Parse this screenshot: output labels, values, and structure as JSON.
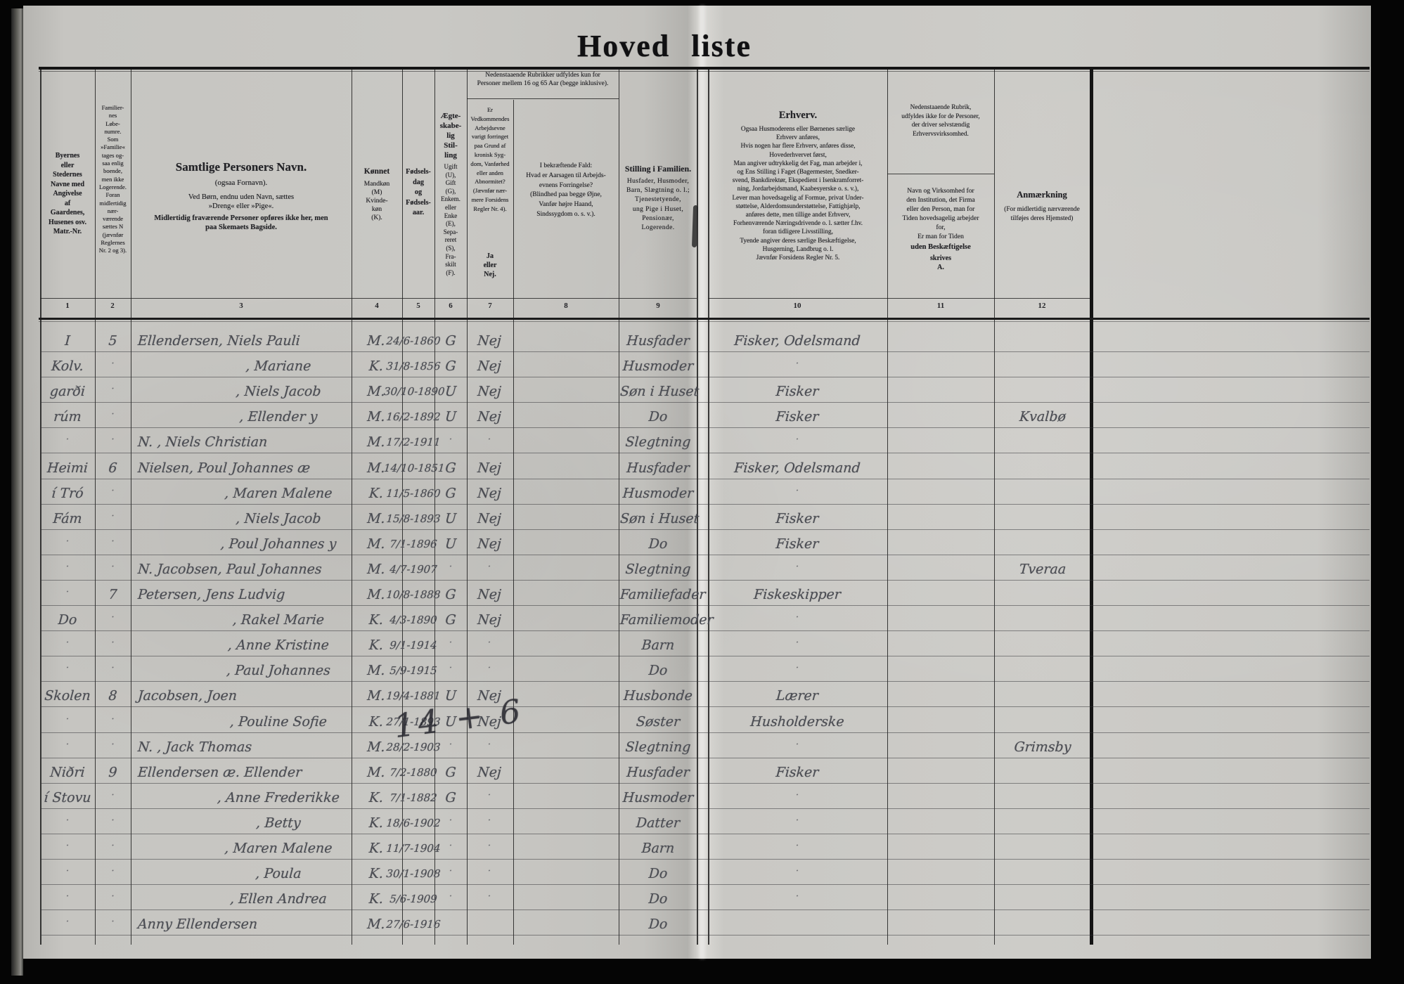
{
  "page": {
    "title_word1": "Hoved",
    "title_word2": "liste"
  },
  "colors": {
    "paper": "#c8c7c3",
    "print_ink": "#232327",
    "handwriting_ink": "#4a4c52",
    "border": "#050505"
  },
  "header": {
    "col1": "Byernes\neller\nStedernes\nNavne med\nAngivelse\naf\nGaardenes,\nHusenes osv.\nMatr.-Nr.",
    "col2": "Familier-\nnes\nLøbe-\nnumre.\nSom\n»Familie«\ntages og-\nsaa enlig\nboende,\nmen ikke\nLogerende.\nForan\nmidlertidig\nnær-\nværende\nsættes N\n(jævnfør\nReglernes\nNr. 2 og 3).",
    "col3_title": "Samtlige Personers Navn.",
    "col3_sub": "(ogsaa Fornavn).",
    "col3_line1": "Ved Børn, endnu uden Navn, sættes\n»Dreng« eller »Pige«.",
    "col3_line2": "Midlertidig fraværende Personer opføres ikke her, men\npaa Skemaets Bagside.",
    "col4_title": "Kønnet",
    "col4_sub": "Mandkøn\n(M)\nKvinde-\nkøn\n(K).",
    "col5": "Fødsels-\ndag\nog\nFødsels-\naar.",
    "col6_title": "Ægte-\nskabe-\nlig\nStil-\nling",
    "col6_sub": "Ugift\n(U),\nGift\n(G),\nEnkem.\neller\nEnke\n(E),\nSepa-\nreret\n(S),\nFra-\nskilt\n(F).",
    "group78": "Nedenstaaende Rubrikker udfyldes kun for\nPersoner mellem 16 og 65 Aar (begge inklusive).",
    "col7": "Er\nVedkommendes\nArbejdsevne\nvarigt forringet\npaa Grund af\nkronisk Syg-\ndom, Vanførhed\neller anden\nAbnormitet?\n(Jævnfør nær-\nmere Forsidens\nRegler Nr. 4).",
    "col7_janej": "Ja\neller\nNej.",
    "col8": "I bekræftende Fald:\nHvad er Aarsagen til Arbejds-\nevnens Forringelse?\n(Blindhed paa begge Øjne,\nVanfør højre Haand,\nSindssygdom o. s. v.).",
    "col9_title": "Stilling i Familien.",
    "col9_sub": "Husfader, Husmoder,\nBarn, Slægtning o. l.;\nTjenestetyende,\nung Pige i Huset,\nPensionær,\nLogerende.",
    "col10_title": "Erhverv.",
    "col10_body": "Ogsaa Husmoderens eller Børnenes særlige\nErhverv anføres,\nHvis nogen har flere Erhverv, anføres disse,\nHovederhvervet først,\nMan angiver udtrykkelig det Fag, man arbejder i,\nog Ens Stilling i Faget (Bagermester, Snedker-\nsvend, Bankdirektør, Ekspedient i Isenkramforret-\nning, Jordarbejdsmand, Kaabesyerske o. s. v.),\nLever man hovedsagelig af Formue, privat Under-\nstøttelse, Alderdomsunderstøttelse, Fattighjælp,\nanføres dette, men tillige andet Erhverv,\nForhenværende Næringsdrivende o. l. sætter f.hv.\nforan tidligere Livsstilling,\nTyende angiver deres særlige Beskæftigelse,\nHusgerning, Landbrug o. l.\nJævnfør Forsidens Regler Nr. 5.",
    "col11_note": "Nedenstaaende Rubrik,\nudfyldes ikke for de Personer,\nder driver selvstændig\nErhvervsvirksomhed.",
    "col11_body": "Navn og Virksomhed for\nden Institution, det Firma\neller den Person, man for\nTiden hovedsagelig arbejder\nfor,\nEr man for Tiden",
    "col11_body2": "uden Beskæftigelse",
    "col11_body3": "skrives\nA.",
    "col12_title": "Anmærkning",
    "col12_sub": "(For midlertidig nærværende\ntilføjes deres Hjemsted)"
  },
  "column_numbers": [
    "1",
    "2",
    "3",
    "4",
    "5",
    "6",
    "7",
    "8",
    "9",
    "10",
    "11",
    "12"
  ],
  "rows": [
    {
      "c1": "I",
      "c2": "5",
      "name": "Ellendersen, Niels Pauli",
      "ind": 0,
      "sex": "M.",
      "date": "24/6-1860",
      "civ": "G",
      "work": "Nej",
      "fam": "Husfader",
      "job": "Fisker, Odelsmand",
      "note": ""
    },
    {
      "c1": "Kolv.",
      "c2": "·",
      "name": ", Mariane",
      "ind": 1,
      "sex": "K.",
      "date": "31/8-1856",
      "civ": "G",
      "work": "Nej",
      "fam": "Husmoder",
      "job": "·",
      "note": ""
    },
    {
      "c1": "garði",
      "c2": "·",
      "name": ", Niels Jacob",
      "ind": 1,
      "sex": "M.",
      "date": "30/10-1890",
      "civ": "U",
      "work": "Nej",
      "fam": "Søn i Huset",
      "job": "Fisker",
      "note": ""
    },
    {
      "c1": "rúm",
      "c2": "·",
      "name": ", Ellender y",
      "ind": 1,
      "sex": "M.",
      "date": "16/2-1892",
      "civ": "U",
      "work": "Nej",
      "fam": "Do",
      "job": "Fisker",
      "note": "Kvalbø"
    },
    {
      "c1": "·",
      "c2": "·",
      "name": "N.  , Niels Christian",
      "ind": 0,
      "sex": "M.",
      "date": "17/2-1911",
      "civ": "·",
      "work": "·",
      "fam": "Slegtning",
      "job": "·",
      "note": ""
    },
    {
      "c1": "Heimi",
      "c2": "6",
      "name": "Nielsen, Poul Johannes æ",
      "ind": 0,
      "sex": "M.",
      "date": "14/10-1851",
      "civ": "G",
      "work": "Nej",
      "fam": "Husfader",
      "job": "Fisker, Odelsmand",
      "note": ""
    },
    {
      "c1": "í Tró",
      "c2": "·",
      "name": ", Maren Malene",
      "ind": 1,
      "sex": "K.",
      "date": "11/5-1860",
      "civ": "G",
      "work": "Nej",
      "fam": "Husmoder",
      "job": "·",
      "note": ""
    },
    {
      "c1": "Fám",
      "c2": "·",
      "name": ", Niels Jacob",
      "ind": 1,
      "sex": "M.",
      "date": "15/8-1893",
      "civ": "U",
      "work": "Nej",
      "fam": "Søn i Huset",
      "job": "Fisker",
      "note": ""
    },
    {
      "c1": "·",
      "c2": "·",
      "name": ", Poul Johannes y",
      "ind": 1,
      "sex": "M.",
      "date": "7/1-1896",
      "civ": "U",
      "work": "Nej",
      "fam": "Do",
      "job": "Fisker",
      "note": ""
    },
    {
      "c1": "·",
      "c2": "·",
      "name": "N. Jacobsen, Paul Johannes",
      "ind": 0,
      "sex": "M.",
      "date": "4/7-1907",
      "civ": "·",
      "work": "·",
      "fam": "Slegtning",
      "job": "·",
      "note": "Tveraa"
    },
    {
      "c1": "·",
      "c2": "7",
      "name": "Petersen, Jens Ludvig",
      "ind": 0,
      "sex": "M.",
      "date": "10/8-1888",
      "civ": "G",
      "work": "Nej",
      "fam": "Familiefader",
      "job": "Fiskeskipper",
      "note": ""
    },
    {
      "c1": "Do",
      "c2": "·",
      "name": ", Rakel Marie",
      "ind": 1,
      "sex": "K.",
      "date": "4/3-1890",
      "civ": "G",
      "work": "Nej",
      "fam": "Familiemoder",
      "job": "·",
      "note": ""
    },
    {
      "c1": "·",
      "c2": "·",
      "name": ", Anne Kristine",
      "ind": 1,
      "sex": "K.",
      "date": "9/1-1914",
      "civ": "·",
      "work": "·",
      "fam": "Barn",
      "job": "·",
      "note": ""
    },
    {
      "c1": "·",
      "c2": "·",
      "name": ", Paul Johannes",
      "ind": 1,
      "sex": "M.",
      "date": "5/9-1915",
      "civ": "·",
      "work": "·",
      "fam": "Do",
      "job": "·",
      "note": ""
    },
    {
      "c1": "Skolen",
      "c2": "8",
      "name": "Jacobsen, Joen",
      "ind": 0,
      "sex": "M.",
      "date": "19/4-1881",
      "civ": "U",
      "work": "Nej",
      "fam": "Husbonde",
      "job": "Lærer",
      "note": ""
    },
    {
      "c1": "·",
      "c2": "·",
      "name": ", Pouline Sofie",
      "ind": 1,
      "sex": "K.",
      "date": "27/1-1893",
      "civ": "U",
      "work": "Nej",
      "fam": "Søster",
      "job": "Husholderske",
      "note": ""
    },
    {
      "c1": "·",
      "c2": "·",
      "name": "N.  , Jack Thomas",
      "ind": 0,
      "sex": "M.",
      "date": "28/2-1903",
      "civ": "·",
      "work": "·",
      "fam": "Slegtning",
      "job": "·",
      "note": "Grimsby"
    },
    {
      "c1": "Niðri",
      "c2": "9",
      "name": "Ellendersen æ. Ellender",
      "ind": 0,
      "sex": "M.",
      "date": "7/2-1880",
      "civ": "G",
      "work": "Nej",
      "fam": "Husfader",
      "job": "Fisker",
      "note": ""
    },
    {
      "c1": "í Stovu",
      "c2": "·",
      "name": ", Anne Frederikke",
      "ind": 1,
      "sex": "K.",
      "date": "7/1-1882",
      "civ": "G",
      "work": "·",
      "fam": "Husmoder",
      "job": "·",
      "note": ""
    },
    {
      "c1": "·",
      "c2": "·",
      "name": ", Betty",
      "ind": 1,
      "sex": "K.",
      "date": "18/6-1902",
      "civ": "·",
      "work": "·",
      "fam": "Datter",
      "job": "·",
      "note": ""
    },
    {
      "c1": "·",
      "c2": "·",
      "name": ", Maren Malene",
      "ind": 1,
      "sex": "K.",
      "date": "11/7-1904",
      "civ": "·",
      "work": "·",
      "fam": "Barn",
      "job": "·",
      "note": ""
    },
    {
      "c1": "·",
      "c2": "·",
      "name": ", Poula",
      "ind": 1,
      "sex": "K.",
      "date": "30/1-1908",
      "civ": "·",
      "work": "·",
      "fam": "Do",
      "job": "·",
      "note": ""
    },
    {
      "c1": "·",
      "c2": "·",
      "name": ", Ellen Andrea",
      "ind": 1,
      "sex": "K.",
      "date": "5/6-1909",
      "civ": "·",
      "work": "·",
      "fam": "Do",
      "job": "·",
      "note": ""
    },
    {
      "c1": "·",
      "c2": "·",
      "name": "Anny  Ellendersen",
      "ind": 0,
      "sex": "M.",
      "date": "27/6-1916",
      "civ": "",
      "work": "",
      "fam": "Do",
      "job": "",
      "note": ""
    }
  ],
  "annotations": {
    "scribble": "14 + 6"
  }
}
